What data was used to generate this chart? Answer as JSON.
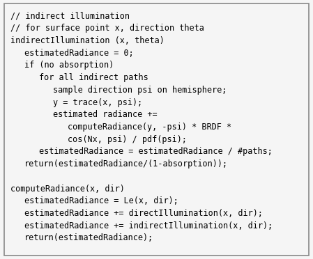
{
  "title": "",
  "background_color": "#f5f5f5",
  "border_color": "#888888",
  "text_color": "#000000",
  "font_family": "monospace",
  "font_size": 8.5,
  "lines": [
    {
      "text": "// indirect illumination",
      "indent": 0
    },
    {
      "text": "// for surface point x, direction theta",
      "indent": 0
    },
    {
      "text": "indirectIllumination (x, theta)",
      "indent": 0
    },
    {
      "text": "estimatedRadiance = 0;",
      "indent": 1
    },
    {
      "text": "if (no absorption)",
      "indent": 1
    },
    {
      "text": "for all indirect paths",
      "indent": 2
    },
    {
      "text": "sample direction psi on hemisphere;",
      "indent": 3
    },
    {
      "text": "y = trace(x, psi);",
      "indent": 3
    },
    {
      "text": "estimated radiance +=",
      "indent": 3
    },
    {
      "text": "computeRadiance(y, -psi) * BRDF *",
      "indent": 4
    },
    {
      "text": "cos(Nx, psi) / pdf(psi);",
      "indent": 4
    },
    {
      "text": "estimatedRadiance = estimatedRadiance / #paths;",
      "indent": 2
    },
    {
      "text": "return(estimatedRadiance/(1-absorption));",
      "indent": 1
    },
    {
      "text": "",
      "indent": 0
    },
    {
      "text": "computeRadiance(x, dir)",
      "indent": 0
    },
    {
      "text": "estimatedRadiance = Le(x, dir);",
      "indent": 1
    },
    {
      "text": "estimatedRadiance += directIllumination(x, dir);",
      "indent": 1
    },
    {
      "text": "estimatedRadiance += indirectIllumination(x, dir);",
      "indent": 1
    },
    {
      "text": "return(estimatedRadiance);",
      "indent": 1
    }
  ],
  "indent_size": 4,
  "figsize": [
    4.49,
    3.72
  ],
  "dpi": 100
}
